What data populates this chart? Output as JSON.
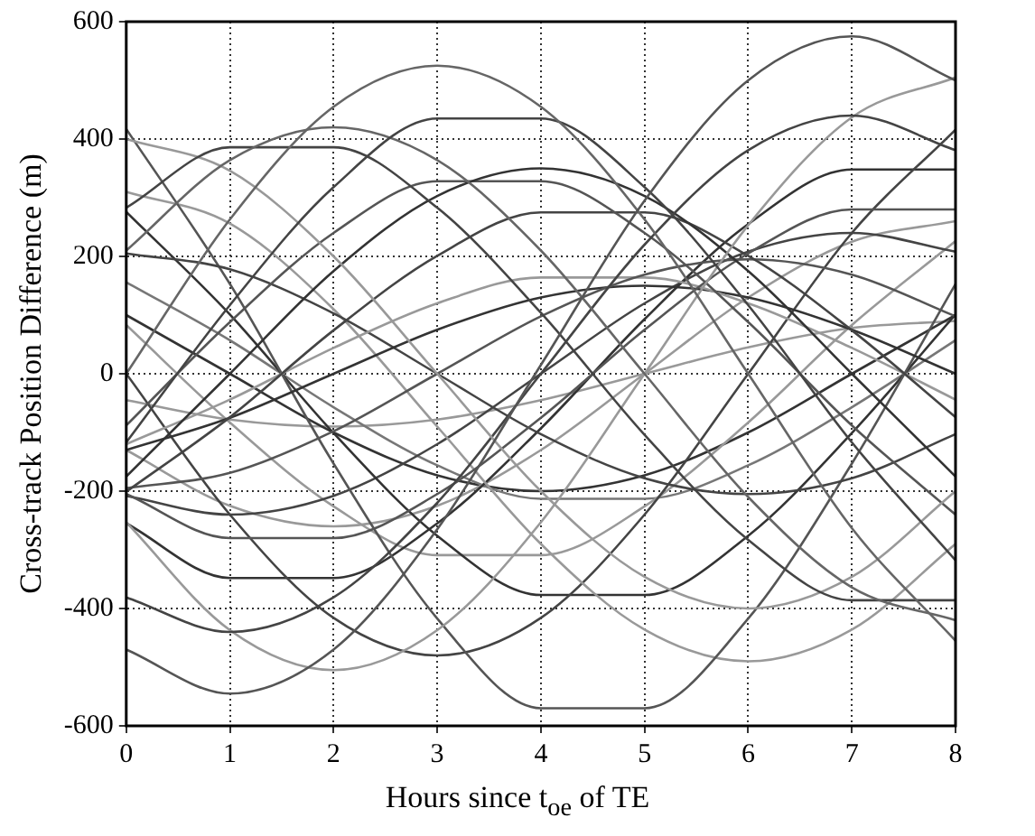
{
  "chart_data": {
    "type": "line",
    "xlabel": "Hours since t$_{oe}$ of TE",
    "ylabel": "Cross-track Position Difference (m)",
    "x": [
      0,
      1,
      2,
      3,
      4,
      5,
      6,
      7,
      8
    ],
    "xlim": [
      0,
      8
    ],
    "xticks": [
      0,
      1,
      2,
      3,
      4,
      5,
      6,
      7,
      8
    ],
    "ylim": [
      -600,
      600
    ],
    "yticks": [
      -600,
      -400,
      -200,
      0,
      200,
      400,
      600
    ],
    "grid": true,
    "legend": false,
    "marker": "none",
    "line_style": "solid",
    "series": [
      {
        "color": "#555555",
        "values": [
          -470,
          -545,
          -470,
          -265,
          15,
          295,
          500,
          575,
          500
        ]
      },
      {
        "color": "#666666",
        "values": [
          0,
          263,
          455,
          525,
          455,
          263,
          0,
          -263,
          -455
        ]
      },
      {
        "color": "#444444",
        "values": [
          -117,
          117,
          318,
          435,
          435,
          318,
          117,
          -117,
          -318
        ]
      },
      {
        "color": "#666666",
        "values": [
          210,
          364,
          420,
          364,
          210,
          0,
          -210,
          -364,
          -420
        ]
      },
      {
        "color": "#444444",
        "values": [
          283,
          386,
          386,
          283,
          104,
          -104,
          -283,
          -386,
          -386
        ]
      },
      {
        "color": "#999999",
        "values": [
          400,
          346,
          200,
          0,
          -200,
          -346,
          -400,
          -346,
          -200
        ]
      },
      {
        "color": "#444444",
        "values": [
          -381,
          -440,
          -381,
          -220,
          0,
          220,
          381,
          440,
          381
        ]
      },
      {
        "color": "#999999",
        "values": [
          -253,
          -437,
          -505,
          -437,
          -253,
          0,
          253,
          437,
          505
        ]
      },
      {
        "color": "#333333",
        "values": [
          -175,
          0,
          175,
          303,
          350,
          303,
          175,
          0,
          -175
        ]
      },
      {
        "color": "#555555",
        "values": [
          -88,
          88,
          240,
          328,
          328,
          240,
          88,
          -88,
          -240
        ]
      },
      {
        "color": "#555555",
        "values": [
          -205,
          -280,
          -280,
          -205,
          -75,
          75,
          205,
          280,
          280
        ]
      },
      {
        "color": "#444444",
        "values": [
          -201,
          -74,
          74,
          201,
          275,
          275,
          201,
          74,
          -74
        ]
      },
      {
        "color": "#555555",
        "values": [
          -195,
          -169,
          -98,
          0,
          98,
          169,
          195,
          169,
          98
        ]
      },
      {
        "color": "#999999",
        "values": [
          -120,
          -44,
          44,
          120,
          164,
          164,
          120,
          44,
          -44
        ]
      },
      {
        "color": "#333333",
        "values": [
          -130,
          -75,
          0,
          75,
          130,
          150,
          130,
          75,
          0
        ]
      },
      {
        "color": "#444444",
        "values": [
          205,
          178,
          103,
          0,
          -103,
          -178,
          -205,
          -178,
          -103
        ]
      },
      {
        "color": "#555555",
        "values": [
          417,
          153,
          -153,
          -417,
          -570,
          -570,
          -417,
          -153,
          153
        ]
      },
      {
        "color": "#999999",
        "values": [
          310,
          256,
          110,
          -90,
          -290,
          -436,
          -490,
          -436,
          -290
        ]
      },
      {
        "color": "#444444",
        "values": [
          0,
          -240,
          -416,
          -480,
          -416,
          -240,
          0,
          240,
          416
        ]
      },
      {
        "color": "#333333",
        "values": [
          276,
          101,
          -101,
          -276,
          -377,
          -377,
          -276,
          -101,
          101
        ]
      },
      {
        "color": "#333333",
        "values": [
          -255,
          -348,
          -348,
          -255,
          -93,
          93,
          255,
          348,
          348
        ]
      },
      {
        "color": "#444444",
        "values": [
          -208,
          -240,
          -208,
          -120,
          0,
          120,
          208,
          240,
          208
        ]
      },
      {
        "color": "#999999",
        "values": [
          -130,
          -225,
          -260,
          -225,
          -130,
          0,
          130,
          225,
          260
        ]
      },
      {
        "color": "#999999",
        "values": [
          83,
          -83,
          -226,
          -309,
          -309,
          -226,
          -83,
          83,
          226
        ]
      },
      {
        "color": "#777777",
        "values": [
          156,
          57,
          -57,
          -156,
          -213,
          -213,
          -156,
          -57,
          57
        ]
      },
      {
        "color": "#333333",
        "values": [
          100,
          0,
          -100,
          -173,
          -200,
          -173,
          -100,
          0,
          100
        ]
      },
      {
        "color": "#999999",
        "values": [
          -45,
          -78,
          -90,
          -78,
          -45,
          0,
          45,
          78,
          90
        ]
      }
    ]
  }
}
